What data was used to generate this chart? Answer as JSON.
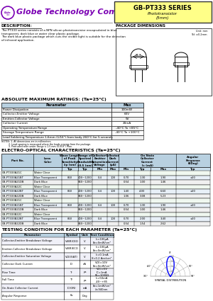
{
  "logo_purple": "#7B00B4",
  "title_box_bg": "#ffff88",
  "bg_color": "#ffffff",
  "header_bg": "#b8d0e0",
  "subheader_bg": "#cce0ee",
  "row_colors": [
    "#ffffff",
    "#ffffff",
    "#ffffff"
  ],
  "abs_max_rows": [
    [
      "Power Dissipation",
      "100mW"
    ],
    [
      "Collector-Emitter Voltage",
      "60V"
    ],
    [
      "Emitter-Collector Voltage",
      "5V"
    ],
    [
      "Collector Current",
      "20mA"
    ],
    [
      "Operating Temperature Range",
      "-40°C To +85°C"
    ],
    [
      "Storage Temperature Range",
      "-40°C To +100°C"
    ],
    [
      "Lead Soldering Temperature 1.6mm (1/16\") from body 260°C for 5 seconds",
      ""
    ]
  ],
  "electro_rows": [
    [
      "GB-PT333A21C",
      "Water Clear",
      "",
      "",
      "",
      "",
      "",
      "",
      "",
      ""
    ],
    [
      "GB-PT333A21BT",
      "Blue Transparent",
      "860",
      "400~1200",
      "0.4",
      "100",
      "0.70",
      "1.30",
      "1.90",
      "±20"
    ],
    [
      "GB-PT333A21DB",
      "Dark Blue",
      "",
      "840~1200",
      "",
      "",
      "0.54",
      "1.00",
      "1.46",
      ""
    ],
    [
      "GB-PT333A22C",
      "Water Clear",
      "",
      "",
      "",
      "",
      "",
      "",
      "",
      ""
    ],
    [
      "GB-PT333A22BT",
      "Blue Transparent",
      "860",
      "400~1200",
      "0.4",
      "100",
      "1.40",
      "4.00",
      "6.60",
      "±20"
    ],
    [
      "GB-PT333A22DB",
      "Dark Blue",
      "",
      "840~1200",
      "",
      "",
      "1.06",
      "3.08",
      "5.23",
      ""
    ],
    [
      "GB-PT333B21C",
      "Water Clear",
      "",
      "",
      "",
      "",
      "",
      "",
      "",
      ""
    ],
    [
      "GB-PT333B21BT",
      "Blue Transparent",
      "860",
      "400~1200",
      "0.4",
      "100",
      "0.70",
      "1.30",
      "1.90",
      "±20"
    ],
    [
      "GB-PT333B21DB",
      "Dark Blue",
      "",
      "840~1200",
      "",
      "",
      "0.54",
      "1.00",
      "1.46",
      ""
    ],
    [
      "GB-PT333B22C",
      "Water Clear",
      "",
      "",
      "",
      "",
      "",
      "",
      "",
      ""
    ],
    [
      "GB-PT333B22BT",
      "Blue Transparent",
      "860",
      "400~1200",
      "0.4",
      "100",
      "0.70",
      "2.00",
      "3.40",
      "±20"
    ],
    [
      "GB-PT333B22DB",
      "Dark Blue",
      "",
      "840~1200",
      "",
      "",
      "0.54",
      "1.54",
      "2.62",
      ""
    ]
  ],
  "testing_rows": [
    [
      "Collector-Emitter Breakdown Voltage",
      "V(BR)CEO",
      "V",
      "Ic=100μA\nEe=0mW/cm²"
    ],
    [
      "Emitter-Collector Breakdown Voltage",
      "V(BR)ECO",
      "V",
      "Ic=100μA\nEe=0mW/cm²"
    ],
    [
      "Collector-Emitter Saturation Voltage",
      "VCE(SAT)",
      "V",
      "Ic=0.1mA\nIf=0.2 Aee/cm²"
    ],
    [
      "Collector Dark Current",
      "ID",
      "nA",
      "VCE=10V\nEe=0mW/cm²"
    ],
    [
      "Rise Time",
      "Tr",
      "μs",
      "VCC=5V\nIC=1mA\nRL=1000Ω"
    ],
    [
      "Fall Time",
      "Tf",
      "μs",
      "Ic=50mA\n-40~+85"
    ],
    [
      "On-State Collector Current",
      "IC(ON)",
      "mA",
      "Ee=1mW/cm²\nλ=940nm"
    ],
    [
      "Angular Response",
      "θν",
      "Deg",
      ""
    ]
  ]
}
